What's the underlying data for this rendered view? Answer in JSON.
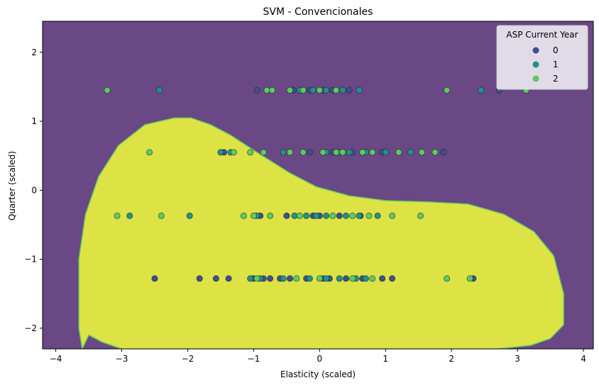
{
  "chart_data": {
    "type": "scatter",
    "title": "SVM - Convencionales",
    "xlabel": "Elasticity (scaled)",
    "ylabel": "Quarter (scaled)",
    "xlim": [
      -4.2,
      4.15
    ],
    "ylim": [
      -2.3,
      2.45
    ],
    "x_ticks": [
      -4,
      -3,
      -2,
      -1,
      0,
      1,
      2,
      3,
      4
    ],
    "x_tick_labels": [
      "−4",
      "−3",
      "−2",
      "−1",
      "0",
      "1",
      "2",
      "3",
      "4"
    ],
    "y_ticks": [
      -2,
      -1,
      0,
      1,
      2
    ],
    "y_tick_labels": [
      "−2",
      "−1",
      "0",
      "1",
      "2"
    ],
    "grid": false,
    "legend": {
      "title": "ASP Current Year",
      "placement": "top-right"
    },
    "decision_regions": {
      "background_class_color": "#6a4785",
      "region_class_color": "#dde344",
      "boundary_color": "#5ec962",
      "region_boundary": [
        [
          -3.6,
          -2.3
        ],
        [
          -3.65,
          -2.0
        ],
        [
          -3.65,
          -1.0
        ],
        [
          -3.55,
          -0.35
        ],
        [
          -3.35,
          0.2
        ],
        [
          -3.05,
          0.65
        ],
        [
          -2.65,
          0.95
        ],
        [
          -2.2,
          1.05
        ],
        [
          -1.95,
          1.05
        ],
        [
          -1.65,
          0.95
        ],
        [
          -1.35,
          0.8
        ],
        [
          -0.95,
          0.55
        ],
        [
          -0.45,
          0.25
        ],
        [
          -0.05,
          0.05
        ],
        [
          0.45,
          -0.08
        ],
        [
          1.0,
          -0.15
        ],
        [
          1.65,
          -0.17
        ],
        [
          2.25,
          -0.2
        ],
        [
          2.8,
          -0.35
        ],
        [
          3.25,
          -0.6
        ],
        [
          3.55,
          -0.95
        ],
        [
          3.7,
          -1.5
        ],
        [
          3.7,
          -1.95
        ],
        [
          3.5,
          -2.15
        ],
        [
          3.2,
          -2.25
        ],
        [
          2.7,
          -2.3
        ],
        [
          -3.0,
          -2.3
        ],
        [
          -3.3,
          -2.2
        ],
        [
          -3.5,
          -2.1
        ]
      ]
    },
    "series": [
      {
        "name": "0",
        "color": "#3b528b",
        "points": [
          [
            -0.95,
            1.45
          ],
          [
            -0.4,
            1.45
          ],
          [
            -0.15,
            1.45
          ],
          [
            0.05,
            1.45
          ],
          [
            0.2,
            1.45
          ],
          [
            0.45,
            1.45
          ],
          [
            2.72,
            1.45
          ],
          [
            -1.45,
            0.55
          ],
          [
            -0.15,
            0.55
          ],
          [
            0.2,
            0.55
          ],
          [
            0.5,
            0.55
          ],
          [
            0.95,
            0.55
          ],
          [
            1.88,
            0.55
          ],
          [
            -0.9,
            -0.37
          ],
          [
            -0.5,
            -0.37
          ],
          [
            -0.1,
            -0.37
          ],
          [
            0.0,
            -0.37
          ],
          [
            0.3,
            -0.37
          ],
          [
            0.62,
            -0.37
          ],
          [
            -2.5,
            -1.28
          ],
          [
            -1.82,
            -1.28
          ],
          [
            -1.57,
            -1.28
          ],
          [
            -1.38,
            -1.28
          ],
          [
            -1.0,
            -1.28
          ],
          [
            -0.85,
            -1.28
          ],
          [
            -0.75,
            -1.28
          ],
          [
            -0.6,
            -1.28
          ],
          [
            -0.45,
            -1.28
          ],
          [
            -0.2,
            -1.28
          ],
          [
            0.05,
            -1.28
          ],
          [
            0.15,
            -1.28
          ],
          [
            0.4,
            -1.28
          ],
          [
            0.65,
            -1.28
          ],
          [
            0.95,
            -1.28
          ],
          [
            1.1,
            -1.28
          ],
          [
            2.33,
            -1.28
          ]
        ]
      },
      {
        "name": "1",
        "color": "#21918c",
        "points": [
          [
            -2.43,
            1.45
          ],
          [
            -0.3,
            1.45
          ],
          [
            -0.1,
            1.45
          ],
          [
            0.1,
            1.45
          ],
          [
            0.35,
            1.45
          ],
          [
            0.6,
            1.45
          ],
          [
            2.45,
            1.45
          ],
          [
            -1.5,
            0.55
          ],
          [
            -1.35,
            0.55
          ],
          [
            -0.55,
            0.55
          ],
          [
            0.1,
            0.55
          ],
          [
            0.3,
            0.55
          ],
          [
            0.45,
            0.55
          ],
          [
            0.7,
            0.55
          ],
          [
            1.0,
            0.55
          ],
          [
            1.38,
            0.55
          ],
          [
            -2.88,
            -0.37
          ],
          [
            -1.97,
            -0.37
          ],
          [
            -0.95,
            -0.37
          ],
          [
            -0.38,
            -0.37
          ],
          [
            -0.2,
            -0.37
          ],
          [
            -0.05,
            -0.37
          ],
          [
            0.1,
            -0.37
          ],
          [
            0.4,
            -0.37
          ],
          [
            0.6,
            -0.37
          ],
          [
            0.88,
            -0.37
          ],
          [
            -1.05,
            -1.28
          ],
          [
            -0.9,
            -1.28
          ],
          [
            -0.55,
            -1.28
          ],
          [
            -0.15,
            -1.28
          ],
          [
            0.1,
            -1.28
          ],
          [
            0.3,
            -1.28
          ],
          [
            0.55,
            -1.28
          ],
          [
            0.7,
            -1.28
          ]
        ]
      },
      {
        "name": "2",
        "color": "#5ec962",
        "points": [
          [
            -3.22,
            1.45
          ],
          [
            -0.8,
            1.45
          ],
          [
            -0.72,
            1.45
          ],
          [
            -0.45,
            1.45
          ],
          [
            -0.25,
            1.45
          ],
          [
            0.0,
            1.45
          ],
          [
            0.25,
            1.45
          ],
          [
            1.93,
            1.45
          ],
          [
            3.13,
            1.45
          ],
          [
            -2.58,
            0.55
          ],
          [
            -1.3,
            0.55
          ],
          [
            -1.05,
            0.55
          ],
          [
            -0.85,
            0.55
          ],
          [
            -0.45,
            0.55
          ],
          [
            -0.25,
            0.55
          ],
          [
            0.05,
            0.55
          ],
          [
            0.25,
            0.55
          ],
          [
            0.35,
            0.55
          ],
          [
            0.65,
            0.55
          ],
          [
            0.8,
            0.55
          ],
          [
            1.2,
            0.55
          ],
          [
            1.55,
            0.55
          ],
          [
            1.75,
            0.55
          ],
          [
            -3.07,
            -0.37
          ],
          [
            -2.4,
            -0.37
          ],
          [
            -1.15,
            -0.37
          ],
          [
            -1.0,
            -0.37
          ],
          [
            -0.75,
            -0.37
          ],
          [
            -0.3,
            -0.37
          ],
          [
            0.2,
            -0.37
          ],
          [
            0.5,
            -0.37
          ],
          [
            0.75,
            -0.37
          ],
          [
            1.1,
            -0.37
          ],
          [
            1.53,
            -0.37
          ],
          [
            -0.95,
            -1.28
          ],
          [
            -0.35,
            -1.28
          ],
          [
            0.0,
            -1.28
          ],
          [
            0.5,
            -1.28
          ],
          [
            0.8,
            -1.28
          ],
          [
            1.93,
            -1.28
          ],
          [
            2.28,
            -1.28
          ]
        ]
      }
    ]
  }
}
